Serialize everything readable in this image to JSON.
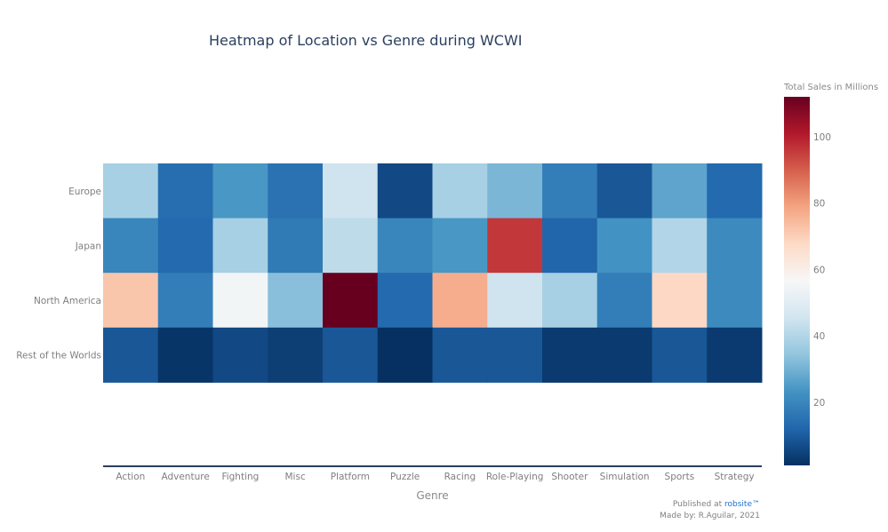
{
  "chart_data": {
    "type": "heatmap",
    "title": "Heatmap of Location vs Genre during WCWI",
    "xlabel": "Genre",
    "ylabel": "",
    "x": [
      "Action",
      "Adventure",
      "Fighting",
      "Misc",
      "Platform",
      "Puzzle",
      "Racing",
      "Role-Playing",
      "Shooter",
      "Simulation",
      "Sports",
      "Strategy"
    ],
    "y": [
      "Europe",
      "Japan",
      "North America",
      "Rest of the Worlds"
    ],
    "values": [
      [
        38,
        14,
        24,
        15,
        45,
        6,
        38,
        31,
        18,
        9,
        27,
        13
      ],
      [
        20,
        13,
        38,
        17,
        42,
        20,
        24,
        96,
        12,
        23,
        40,
        21
      ],
      [
        72,
        18,
        55,
        33,
        112,
        13,
        77,
        45,
        38,
        18,
        68,
        21
      ],
      [
        9,
        2,
        6,
        4,
        9,
        1,
        9,
        9,
        3,
        3,
        9,
        3
      ]
    ],
    "colorscale": "RdBu (reversed)",
    "zrange": [
      1,
      112
    ],
    "colorbar": {
      "title": "Total Sales in Millions",
      "ticks": [
        20,
        40,
        60,
        80,
        100
      ]
    }
  },
  "footer": {
    "published_prefix": "Published at ",
    "published_site": "robsite™",
    "made_by": "Made by: R.Aguilar, 2021"
  }
}
